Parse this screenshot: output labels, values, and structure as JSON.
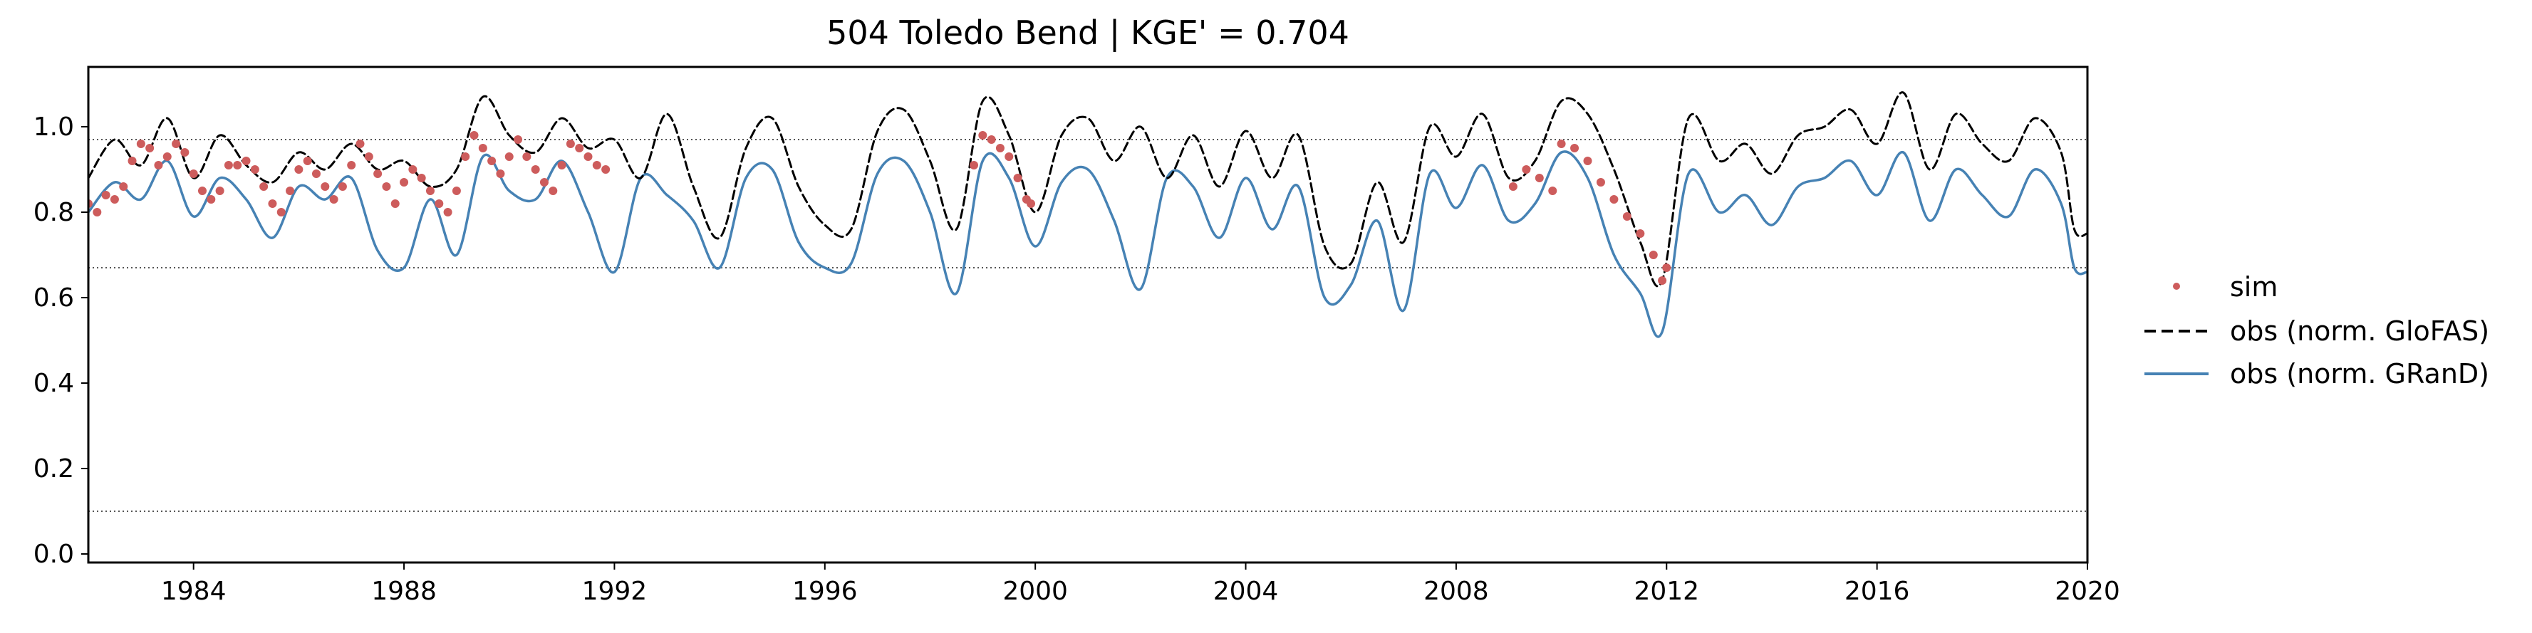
{
  "chart_data": {
    "type": "line",
    "title": "504  Toledo Bend | KGE' = 0.704",
    "xlabel": "",
    "ylabel": "",
    "xlim": [
      "1982-01-01",
      "2020-01-01"
    ],
    "ylim": [
      -0.02,
      1.14
    ],
    "xticks": [
      "1984",
      "1988",
      "1992",
      "1996",
      "2000",
      "2004",
      "2008",
      "2012",
      "2016",
      "2020"
    ],
    "yticks": [
      "0.0",
      "0.2",
      "0.4",
      "0.6",
      "0.8",
      "1.0"
    ],
    "grid": false,
    "legend_position": "right",
    "reference_lines": [
      0.97,
      0.67,
      0.1
    ],
    "series": [
      {
        "name": "sim",
        "style": "points",
        "color": "#cd5c5c",
        "points": [
          [
            "1982-01",
            0.82
          ],
          [
            "1982-03",
            0.8
          ],
          [
            "1982-05",
            0.84
          ],
          [
            "1982-07",
            0.83
          ],
          [
            "1982-09",
            0.86
          ],
          [
            "1982-11",
            0.92
          ],
          [
            "1983-01",
            0.96
          ],
          [
            "1983-03",
            0.95
          ],
          [
            "1983-05",
            0.91
          ],
          [
            "1983-07",
            0.93
          ],
          [
            "1983-09",
            0.96
          ],
          [
            "1983-11",
            0.94
          ],
          [
            "1984-01",
            0.89
          ],
          [
            "1984-03",
            0.85
          ],
          [
            "1984-05",
            0.83
          ],
          [
            "1984-07",
            0.85
          ],
          [
            "1984-09",
            0.91
          ],
          [
            "1984-11",
            0.91
          ],
          [
            "1985-01",
            0.92
          ],
          [
            "1985-03",
            0.9
          ],
          [
            "1985-05",
            0.86
          ],
          [
            "1985-07",
            0.82
          ],
          [
            "1985-09",
            0.8
          ],
          [
            "1985-11",
            0.85
          ],
          [
            "1986-01",
            0.9
          ],
          [
            "1986-03",
            0.92
          ],
          [
            "1986-05",
            0.89
          ],
          [
            "1986-07",
            0.86
          ],
          [
            "1986-09",
            0.83
          ],
          [
            "1986-11",
            0.86
          ],
          [
            "1987-01",
            0.91
          ],
          [
            "1987-03",
            0.96
          ],
          [
            "1987-05",
            0.93
          ],
          [
            "1987-07",
            0.89
          ],
          [
            "1987-09",
            0.86
          ],
          [
            "1987-11",
            0.82
          ],
          [
            "1988-01",
            0.87
          ],
          [
            "1988-03",
            0.9
          ],
          [
            "1988-05",
            0.88
          ],
          [
            "1988-07",
            0.85
          ],
          [
            "1988-09",
            0.82
          ],
          [
            "1988-11",
            0.8
          ],
          [
            "1989-01",
            0.85
          ],
          [
            "1989-03",
            0.93
          ],
          [
            "1989-05",
            0.98
          ],
          [
            "1989-07",
            0.95
          ],
          [
            "1989-09",
            0.92
          ],
          [
            "1989-11",
            0.89
          ],
          [
            "1990-01",
            0.93
          ],
          [
            "1990-03",
            0.97
          ],
          [
            "1990-05",
            0.93
          ],
          [
            "1990-07",
            0.9
          ],
          [
            "1990-09",
            0.87
          ],
          [
            "1990-11",
            0.85
          ],
          [
            "1991-01",
            0.91
          ],
          [
            "1991-03",
            0.96
          ],
          [
            "1991-05",
            0.95
          ],
          [
            "1991-07",
            0.93
          ],
          [
            "1991-09",
            0.91
          ],
          [
            "1991-11",
            0.9
          ],
          [
            "1998-11",
            0.91
          ],
          [
            "1999-01",
            0.98
          ],
          [
            "1999-03",
            0.97
          ],
          [
            "1999-05",
            0.95
          ],
          [
            "1999-07",
            0.93
          ],
          [
            "1999-09",
            0.88
          ],
          [
            "1999-11",
            0.83
          ],
          [
            "1999-12",
            0.82
          ],
          [
            "2009-02",
            0.86
          ],
          [
            "2009-05",
            0.9
          ],
          [
            "2009-08",
            0.88
          ],
          [
            "2009-11",
            0.85
          ],
          [
            "2010-01",
            0.96
          ],
          [
            "2010-04",
            0.95
          ],
          [
            "2010-07",
            0.92
          ],
          [
            "2010-10",
            0.87
          ],
          [
            "2011-01",
            0.83
          ],
          [
            "2011-04",
            0.79
          ],
          [
            "2011-07",
            0.75
          ],
          [
            "2011-10",
            0.7
          ],
          [
            "2011-12",
            0.64
          ],
          [
            "2012-01",
            0.67
          ]
        ]
      },
      {
        "name": "obs (norm. GloFAS)",
        "style": "dashed",
        "color": "#000000",
        "points": [
          [
            "1982-01",
            0.88
          ],
          [
            "1982-07",
            0.97
          ],
          [
            "1983-01",
            0.91
          ],
          [
            "1983-07",
            1.02
          ],
          [
            "1984-01",
            0.88
          ],
          [
            "1984-07",
            0.98
          ],
          [
            "1985-01",
            0.91
          ],
          [
            "1985-07",
            0.87
          ],
          [
            "1986-01",
            0.94
          ],
          [
            "1986-07",
            0.9
          ],
          [
            "1987-01",
            0.96
          ],
          [
            "1987-07",
            0.9
          ],
          [
            "1988-01",
            0.92
          ],
          [
            "1988-07",
            0.86
          ],
          [
            "1989-01",
            0.9
          ],
          [
            "1989-07",
            1.07
          ],
          [
            "1990-01",
            0.98
          ],
          [
            "1990-07",
            0.94
          ],
          [
            "1991-01",
            1.02
          ],
          [
            "1991-07",
            0.95
          ],
          [
            "1992-01",
            0.97
          ],
          [
            "1992-07",
            0.88
          ],
          [
            "1993-01",
            1.03
          ],
          [
            "1993-07",
            0.86
          ],
          [
            "1994-01",
            0.74
          ],
          [
            "1994-07",
            0.95
          ],
          [
            "1995-01",
            1.02
          ],
          [
            "1995-07",
            0.86
          ],
          [
            "1996-01",
            0.77
          ],
          [
            "1996-07",
            0.76
          ],
          [
            "1997-01",
            0.99
          ],
          [
            "1997-07",
            1.04
          ],
          [
            "1998-01",
            0.92
          ],
          [
            "1998-07",
            0.76
          ],
          [
            "1999-01",
            1.06
          ],
          [
            "1999-07",
            0.98
          ],
          [
            "2000-01",
            0.8
          ],
          [
            "2000-07",
            0.98
          ],
          [
            "2001-01",
            1.02
          ],
          [
            "2001-07",
            0.92
          ],
          [
            "2002-01",
            1.0
          ],
          [
            "2002-07",
            0.88
          ],
          [
            "2003-01",
            0.98
          ],
          [
            "2003-07",
            0.86
          ],
          [
            "2004-01",
            0.99
          ],
          [
            "2004-07",
            0.88
          ],
          [
            "2005-01",
            0.98
          ],
          [
            "2005-07",
            0.72
          ],
          [
            "2006-01",
            0.68
          ],
          [
            "2006-07",
            0.87
          ],
          [
            "2007-01",
            0.73
          ],
          [
            "2007-07",
            1.0
          ],
          [
            "2008-01",
            0.93
          ],
          [
            "2008-07",
            1.03
          ],
          [
            "2009-01",
            0.88
          ],
          [
            "2009-07",
            0.92
          ],
          [
            "2010-01",
            1.06
          ],
          [
            "2010-07",
            1.03
          ],
          [
            "2011-01",
            0.9
          ],
          [
            "2011-07",
            0.73
          ],
          [
            "2011-12",
            0.64
          ],
          [
            "2012-06",
            1.02
          ],
          [
            "2013-01",
            0.92
          ],
          [
            "2013-07",
            0.96
          ],
          [
            "2014-01",
            0.89
          ],
          [
            "2014-07",
            0.98
          ],
          [
            "2015-01",
            1.0
          ],
          [
            "2015-07",
            1.04
          ],
          [
            "2016-01",
            0.96
          ],
          [
            "2016-07",
            1.08
          ],
          [
            "2017-01",
            0.9
          ],
          [
            "2017-07",
            1.03
          ],
          [
            "2018-01",
            0.96
          ],
          [
            "2018-07",
            0.92
          ],
          [
            "2019-01",
            1.02
          ],
          [
            "2019-07",
            0.94
          ],
          [
            "2019-10",
            0.76
          ],
          [
            "2020-01",
            0.75
          ]
        ]
      },
      {
        "name": "obs (norm. GRanD)",
        "style": "solid",
        "color": "#4682b4",
        "points": [
          [
            "1982-01",
            0.8
          ],
          [
            "1982-07",
            0.87
          ],
          [
            "1983-01",
            0.83
          ],
          [
            "1983-07",
            0.92
          ],
          [
            "1984-01",
            0.79
          ],
          [
            "1984-07",
            0.88
          ],
          [
            "1985-01",
            0.83
          ],
          [
            "1985-07",
            0.74
          ],
          [
            "1986-01",
            0.86
          ],
          [
            "1986-07",
            0.83
          ],
          [
            "1987-01",
            0.88
          ],
          [
            "1987-07",
            0.71
          ],
          [
            "1988-01",
            0.67
          ],
          [
            "1988-07",
            0.83
          ],
          [
            "1989-01",
            0.7
          ],
          [
            "1989-07",
            0.93
          ],
          [
            "1990-01",
            0.85
          ],
          [
            "1990-07",
            0.83
          ],
          [
            "1991-01",
            0.92
          ],
          [
            "1991-07",
            0.8
          ],
          [
            "1992-01",
            0.66
          ],
          [
            "1992-07",
            0.88
          ],
          [
            "1993-01",
            0.84
          ],
          [
            "1993-07",
            0.78
          ],
          [
            "1994-01",
            0.67
          ],
          [
            "1994-07",
            0.88
          ],
          [
            "1995-01",
            0.9
          ],
          [
            "1995-07",
            0.73
          ],
          [
            "1996-01",
            0.67
          ],
          [
            "1996-07",
            0.68
          ],
          [
            "1997-01",
            0.89
          ],
          [
            "1997-07",
            0.92
          ],
          [
            "1998-01",
            0.8
          ],
          [
            "1998-07",
            0.61
          ],
          [
            "1999-01",
            0.92
          ],
          [
            "1999-07",
            0.88
          ],
          [
            "2000-01",
            0.72
          ],
          [
            "2000-07",
            0.87
          ],
          [
            "2001-01",
            0.9
          ],
          [
            "2001-07",
            0.78
          ],
          [
            "2002-01",
            0.62
          ],
          [
            "2002-07",
            0.88
          ],
          [
            "2003-01",
            0.86
          ],
          [
            "2003-07",
            0.74
          ],
          [
            "2004-01",
            0.88
          ],
          [
            "2004-07",
            0.76
          ],
          [
            "2005-01",
            0.86
          ],
          [
            "2005-07",
            0.6
          ],
          [
            "2006-01",
            0.63
          ],
          [
            "2006-07",
            0.78
          ],
          [
            "2007-01",
            0.57
          ],
          [
            "2007-07",
            0.89
          ],
          [
            "2008-01",
            0.81
          ],
          [
            "2008-07",
            0.91
          ],
          [
            "2009-01",
            0.78
          ],
          [
            "2009-07",
            0.82
          ],
          [
            "2010-01",
            0.94
          ],
          [
            "2010-07",
            0.88
          ],
          [
            "2011-01",
            0.7
          ],
          [
            "2011-07",
            0.61
          ],
          [
            "2011-12",
            0.52
          ],
          [
            "2012-06",
            0.89
          ],
          [
            "2013-01",
            0.8
          ],
          [
            "2013-07",
            0.84
          ],
          [
            "2014-01",
            0.77
          ],
          [
            "2014-07",
            0.86
          ],
          [
            "2015-01",
            0.88
          ],
          [
            "2015-07",
            0.92
          ],
          [
            "2016-01",
            0.84
          ],
          [
            "2016-07",
            0.94
          ],
          [
            "2017-01",
            0.78
          ],
          [
            "2017-07",
            0.9
          ],
          [
            "2018-01",
            0.84
          ],
          [
            "2018-07",
            0.79
          ],
          [
            "2019-01",
            0.9
          ],
          [
            "2019-07",
            0.82
          ],
          [
            "2019-10",
            0.67
          ],
          [
            "2020-01",
            0.66
          ]
        ]
      }
    ]
  }
}
